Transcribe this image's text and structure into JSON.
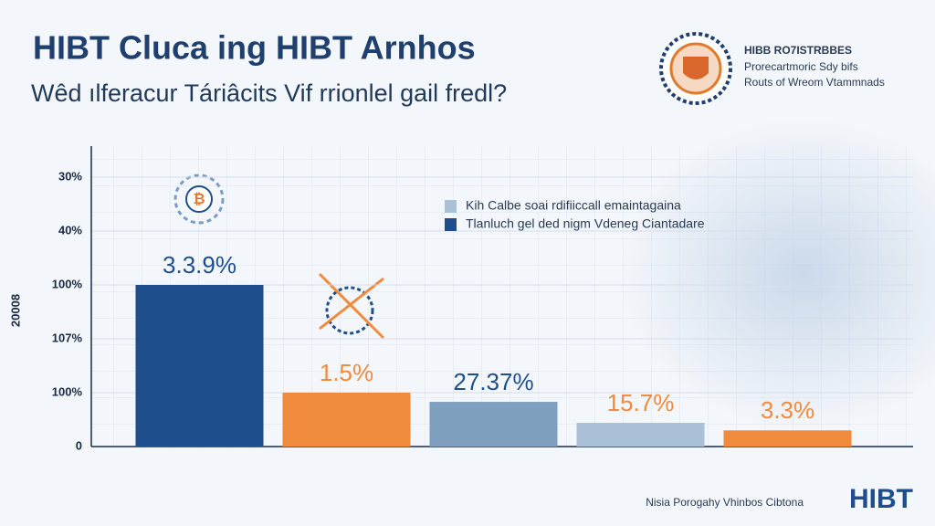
{
  "chart_data": {
    "type": "bar",
    "title": "HIBT Cluca ing HIBT Arnhos",
    "subtitle": "Wêd ılferacur Táriâcits Vif rrionlel gail fredl?",
    "y_label": "20008",
    "categories": [
      null,
      null,
      null,
      null,
      null
    ],
    "values": [
      3.0,
      1.0,
      0.83,
      0.44,
      0.3
    ],
    "value_labels": [
      "3.3.9%",
      "1.5%",
      "27.37%",
      "15.7%",
      "3.3%"
    ],
    "colors": [
      "#1f4e8c",
      "#f08a3c",
      "#7f9fbf",
      "#a9c0d6",
      "#f08a3c"
    ],
    "value_label_colors": [
      "#1f4e8c",
      "#f08a3c",
      "#1f4e8c",
      "#f08a3c",
      "#f08a3c"
    ],
    "ylim": [
      0,
      5.5
    ],
    "yticks": [
      0,
      {
        "value": 1,
        "label": "100%"
      },
      {
        "value": 2,
        "label": "107%"
      },
      {
        "value": 3,
        "label": "100%"
      },
      {
        "value": 4,
        "label": "40%"
      },
      {
        "value": 5,
        "label": "30%"
      }
    ],
    "grid": true,
    "legend": [
      {
        "name": "Kih Calbe soai rdifiiccall emaintagaina",
        "color": "#a9c0d6"
      },
      {
        "name": "Tlanluch gel ded nigm Vdeneg Ciantadare",
        "color": "#1f4e8c"
      }
    ]
  },
  "brand": {
    "name": "HIBB RO7ISTRBBES",
    "lines": [
      "Prorecartmoric Sdy bifs",
      "Routs of Wreom Vtammnads"
    ]
  },
  "footer": {
    "caption": "Nisia Porogahy Vhinbos Cibtona",
    "logo": "HIBT"
  }
}
